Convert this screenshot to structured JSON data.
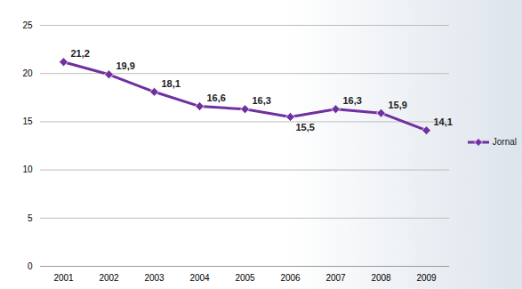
{
  "chart_data": {
    "type": "line",
    "categories": [
      "2001",
      "2002",
      "2003",
      "2004",
      "2005",
      "2006",
      "2007",
      "2008",
      "2009"
    ],
    "series": [
      {
        "name": "Jornal",
        "color": "#7030a0",
        "marker": "diamond",
        "values": [
          21.2,
          19.9,
          18.1,
          16.6,
          16.3,
          15.5,
          16.3,
          15.9,
          14.1
        ],
        "value_labels": [
          "21,2",
          "19,9",
          "18,1",
          "16,6",
          "16,3",
          "15,5",
          "16,3",
          "15,9",
          "14,1"
        ]
      }
    ],
    "ylim": [
      0,
      25
    ],
    "yticks": [
      0,
      5,
      10,
      15,
      20,
      25
    ],
    "grid": true,
    "data_labels": true,
    "legend": "right"
  }
}
